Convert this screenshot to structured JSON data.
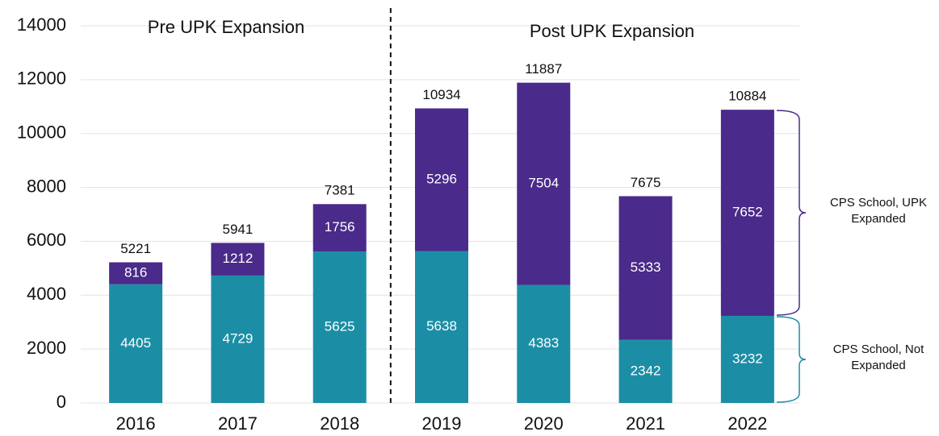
{
  "chart_data": {
    "type": "stacked_bar",
    "categories": [
      "2016",
      "2017",
      "2018",
      "2019",
      "2020",
      "2021",
      "2022"
    ],
    "series": [
      {
        "name": "CPS School, Not Expanded",
        "color": "#1b8ea6",
        "values": [
          4405,
          4729,
          5625,
          5638,
          4383,
          2342,
          3232
        ]
      },
      {
        "name": "CPS School, UPK Expanded",
        "color": "#4a2a8a",
        "values": [
          816,
          1212,
          1756,
          5296,
          7504,
          5333,
          7652
        ]
      }
    ],
    "totals": [
      5221,
      5941,
      7381,
      10934,
      11887,
      7675,
      10884
    ],
    "annotations": [
      "Pre UPK Expansion",
      "Post UPK Expansion"
    ],
    "ylim": [
      0,
      14000
    ],
    "yticks": [
      0,
      2000,
      4000,
      6000,
      8000,
      10000,
      12000,
      14000
    ],
    "grid": true
  }
}
